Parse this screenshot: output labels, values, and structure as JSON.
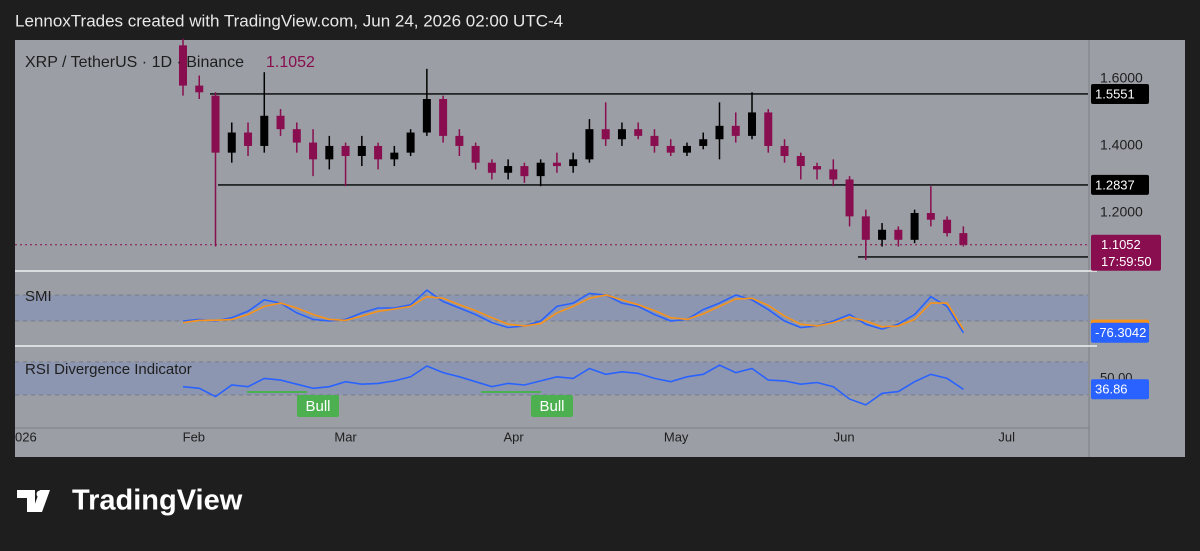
{
  "header": "LennoxTrades created with TradingView.com, Jun 24, 2026 02:00 UTC-4",
  "brand": "TradingView",
  "chart_data": {
    "type": "candlestick",
    "title": "XRP / TetherUS · 1D · Binance",
    "countdown": "17:59:50",
    "up_color": "#000000",
    "down_color": "#880e4f",
    "x": [
      29,
      32,
      35,
      38,
      41,
      44,
      47,
      50,
      53,
      56,
      59,
      62,
      65,
      68,
      71,
      74,
      77,
      80,
      83,
      86,
      89,
      92,
      95,
      98,
      101,
      104,
      107,
      110,
      113,
      116,
      119,
      122,
      125,
      128,
      131,
      134,
      137,
      140,
      143,
      146,
      149,
      152,
      155,
      158,
      161,
      164,
      167,
      170,
      173
    ],
    "open": [
      1.7,
      1.58,
      1.55,
      1.38,
      1.44,
      1.4,
      1.49,
      1.45,
      1.41,
      1.36,
      1.4,
      1.37,
      1.4,
      1.36,
      1.38,
      1.44,
      1.54,
      1.43,
      1.4,
      1.35,
      1.32,
      1.34,
      1.31,
      1.35,
      1.34,
      1.36,
      1.45,
      1.42,
      1.45,
      1.43,
      1.4,
      1.38,
      1.4,
      1.42,
      1.46,
      1.43,
      1.5,
      1.4,
      1.37,
      1.34,
      1.33,
      1.3,
      1.19,
      1.12,
      1.15,
      1.12,
      1.2,
      1.18,
      1.14
    ],
    "high": [
      1.72,
      1.61,
      1.56,
      1.47,
      1.47,
      1.62,
      1.51,
      1.47,
      1.45,
      1.43,
      1.41,
      1.43,
      1.41,
      1.4,
      1.45,
      1.63,
      1.55,
      1.45,
      1.41,
      1.36,
      1.36,
      1.35,
      1.36,
      1.38,
      1.38,
      1.48,
      1.53,
      1.47,
      1.47,
      1.45,
      1.42,
      1.41,
      1.44,
      1.53,
      1.5,
      1.56,
      1.51,
      1.42,
      1.38,
      1.35,
      1.36,
      1.31,
      1.21,
      1.17,
      1.16,
      1.21,
      1.28,
      1.19,
      1.16
    ],
    "low": [
      1.55,
      1.54,
      1.1,
      1.35,
      1.37,
      1.38,
      1.43,
      1.38,
      1.31,
      1.33,
      1.28,
      1.34,
      1.33,
      1.34,
      1.37,
      1.43,
      1.41,
      1.37,
      1.33,
      1.3,
      1.3,
      1.29,
      1.28,
      1.32,
      1.32,
      1.35,
      1.4,
      1.4,
      1.42,
      1.38,
      1.37,
      1.37,
      1.39,
      1.36,
      1.41,
      1.42,
      1.38,
      1.35,
      1.3,
      1.3,
      1.28,
      1.16,
      1.06,
      1.1,
      1.1,
      1.11,
      1.16,
      1.13,
      1.1
    ],
    "close": [
      1.58,
      1.56,
      1.38,
      1.44,
      1.4,
      1.49,
      1.45,
      1.41,
      1.36,
      1.4,
      1.37,
      1.4,
      1.36,
      1.38,
      1.44,
      1.54,
      1.43,
      1.4,
      1.35,
      1.32,
      1.34,
      1.31,
      1.35,
      1.34,
      1.36,
      1.45,
      1.42,
      1.45,
      1.43,
      1.4,
      1.38,
      1.4,
      1.42,
      1.46,
      1.43,
      1.5,
      1.4,
      1.37,
      1.34,
      1.33,
      1.3,
      1.19,
      1.12,
      1.15,
      1.12,
      1.2,
      1.18,
      1.14,
      1.1052
    ],
    "levels": [
      1.5551,
      1.2837,
      1.069
    ],
    "ylim": [
      1.027,
      1.716
    ],
    "yticks": [
      {
        "value": 1.6,
        "label": "1.6000"
      },
      {
        "value": 1.4,
        "label": "1.4000"
      },
      {
        "value": 1.2,
        "label": "1.2000"
      }
    ],
    "xlim": [
      -2,
      196
    ],
    "xticks": [
      {
        "value": 0,
        "label": "026"
      },
      {
        "value": 31,
        "label": "Feb"
      },
      {
        "value": 59,
        "label": "Mar"
      },
      {
        "value": 90,
        "label": "Apr"
      },
      {
        "value": 120,
        "label": "May"
      },
      {
        "value": 151,
        "label": "Jun"
      },
      {
        "value": 181,
        "label": "Jul"
      }
    ],
    "indicators": [
      {
        "type": "line",
        "title": "SMI",
        "ylim": [
          -114,
          111
        ],
        "band": [
          40,
          -40
        ],
        "series": [
          {
            "color": "#2962ff",
            "values": [
              -40,
              -35,
              -40,
              -30,
              -10,
              25,
              15,
              -15,
              -35,
              -40,
              -35,
              -15,
              0,
              0,
              10,
              55,
              20,
              0,
              -20,
              -45,
              -60,
              -55,
              -40,
              5,
              15,
              45,
              40,
              15,
              5,
              -20,
              -40,
              -35,
              -5,
              15,
              40,
              25,
              -5,
              -40,
              -60,
              -55,
              -40,
              -20,
              -50,
              -65,
              -50,
              -20,
              35,
              5,
              -76.3042
            ]
          },
          {
            "color": "#f7931a",
            "values": [
              -45,
              -38,
              -38,
              -35,
              -20,
              5,
              15,
              0,
              -20,
              -35,
              -38,
              -25,
              -10,
              -3,
              5,
              35,
              30,
              10,
              -8,
              -30,
              -50,
              -55,
              -48,
              -15,
              5,
              30,
              40,
              25,
              10,
              -8,
              -30,
              -35,
              -18,
              5,
              28,
              30,
              8,
              -25,
              -50,
              -55,
              -45,
              -28,
              -40,
              -58,
              -55,
              -35,
              15,
              15,
              -66.6482
            ]
          }
        ]
      },
      {
        "type": "line",
        "title": "RSI Divergence Indicator",
        "ylim": [
          -10,
          88
        ],
        "band": [
          70,
          30
        ],
        "yticks": [
          {
            "value": 50,
            "label": "50.00"
          }
        ],
        "annotations": [
          "Bull",
          "Bull"
        ],
        "series": [
          {
            "color": "#2962ff",
            "values": [
              40,
              38,
              28,
              42,
              40,
              50,
              48,
              43,
              38,
              40,
              46,
              43,
              44,
              47,
              52,
              65,
              57,
              52,
              46,
              40,
              44,
              42,
              47,
              52,
              50,
              62,
              55,
              58,
              56,
              50,
              46,
              52,
              55,
              66,
              57,
              62,
              48,
              47,
              43,
              45,
              40,
              25,
              18,
              32,
              34,
              46,
              55,
              50,
              36.86
            ]
          }
        ]
      }
    ]
  }
}
